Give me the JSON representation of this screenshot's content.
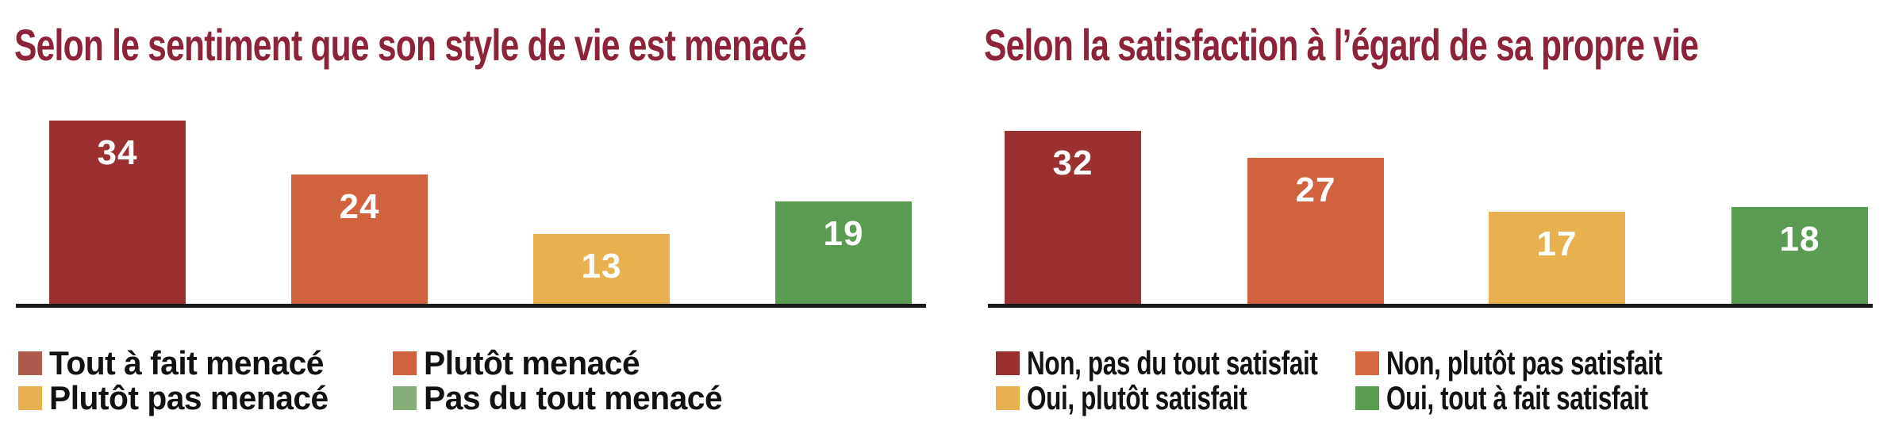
{
  "page": {
    "background": "#ffffff",
    "title_color": "#8D2338",
    "axis_color": "#1A1A1A",
    "value_label_color": "#ffffff"
  },
  "chart_data": [
    {
      "type": "bar",
      "title": "Selon le sentiment que son style de vie est menacé",
      "categories": [
        "Tout à fait menacé",
        "Plutôt menacé",
        "Plutôt pas menacé",
        "Pas du tout menacé"
      ],
      "values": [
        34,
        24,
        13,
        19
      ],
      "bar_colors": [
        "#9A3030",
        "#D0633E",
        "#E8B04F",
        "#5B9C53"
      ],
      "legend": [
        {
          "label": "Tout à fait menacé",
          "color": "#AE5A4D"
        },
        {
          "label": "Plutôt menacé",
          "color": "#D0633E"
        },
        {
          "label": "Plutôt pas menacé",
          "color": "#E8B04F"
        },
        {
          "label": "Pas du tout menacé",
          "color": "#86AE78"
        }
      ],
      "ylim": [
        0,
        40
      ],
      "grid": false,
      "legend_position": "below",
      "value_labels": "inside-top-white"
    },
    {
      "type": "bar",
      "title": "Selon la satisfaction à l’égard de sa propre vie",
      "categories": [
        "Non, pas du tout satisfait",
        "Non, plutôt pas satisfait",
        "Oui, plutôt satisfait",
        "Oui, tout à fait satisfait"
      ],
      "values": [
        32,
        27,
        17,
        18
      ],
      "bar_colors": [
        "#9A3030",
        "#D0633E",
        "#E8B04F",
        "#5B9C53"
      ],
      "legend": [
        {
          "label": "Non, pas du tout satisfait",
          "color": "#9A3030"
        },
        {
          "label": "Non, plutôt pas satisfait",
          "color": "#D2693F"
        },
        {
          "label": "Oui, plutôt satisfait",
          "color": "#E8B04F"
        },
        {
          "label": "Oui, tout à fait satisfait",
          "color": "#5B9C53"
        }
      ],
      "ylim": [
        0,
        40
      ],
      "grid": false,
      "legend_position": "below",
      "value_labels": "inside-top-white"
    }
  ]
}
